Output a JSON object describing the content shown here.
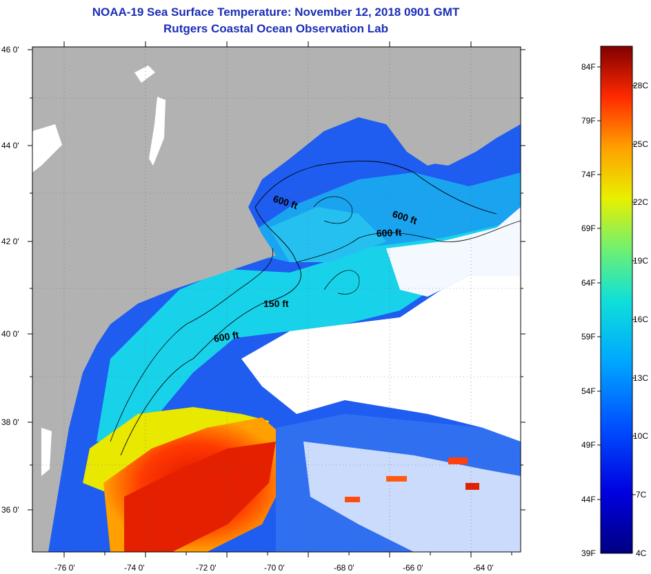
{
  "header": {
    "title": "NOAA-19 Sea Surface Temperature:  November 12, 2018 0901 GMT",
    "subtitle": "Rutgers Coastal Ocean Observation Lab"
  },
  "axes": {
    "x_ticks": [
      "-76 0'",
      "-74 0'",
      "-72 0'",
      "-70 0'",
      "-68 0'",
      "-66 0'",
      "-64 0'"
    ],
    "y_ticks": [
      "46 0'",
      "44 0'",
      "42 0'",
      "40 0'",
      "38 0'",
      "36 0'"
    ]
  },
  "contours": [
    "600 ft",
    "600 ft",
    "600 ft",
    "150 ft",
    "600 ft"
  ],
  "colorbar": {
    "fahrenheit": [
      "84F",
      "79F",
      "74F",
      "69F",
      "64F",
      "59F",
      "54F",
      "49F",
      "44F",
      "39F"
    ],
    "celsius": [
      "28C",
      "25C",
      "22C",
      "19C",
      "16C",
      "13C",
      "10C",
      "7C",
      "4C"
    ]
  },
  "colors": {
    "land": "#b2b2b2",
    "cloud": "#ffffff",
    "title": "#1a2db5"
  }
}
